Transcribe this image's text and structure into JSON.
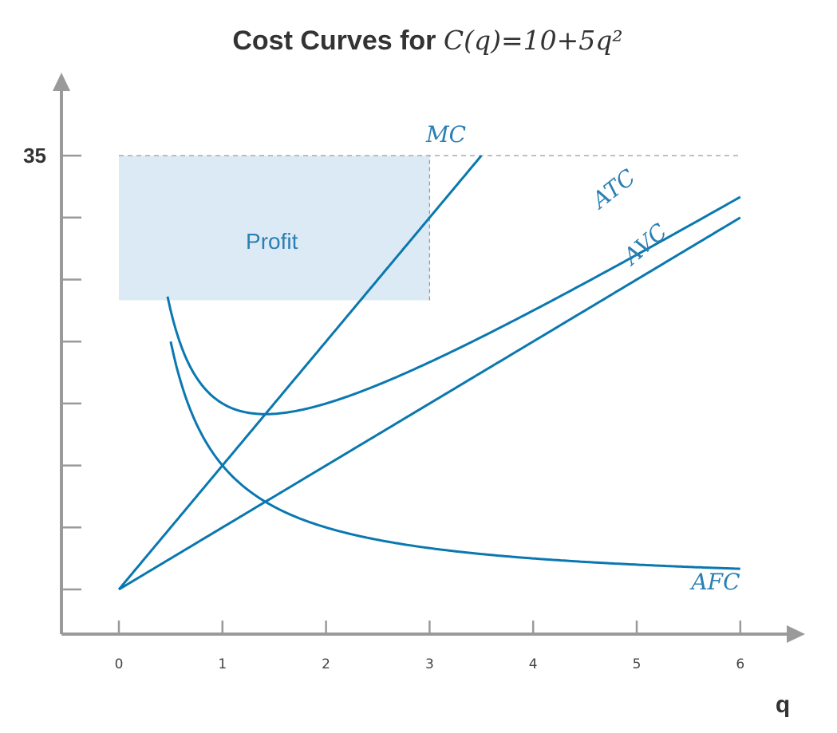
{
  "title_prefix": "Cost Curves for ",
  "title_formula": "C(q)=10+5q²",
  "chart_data": {
    "type": "line",
    "title": "Cost Curves for C(q)=10+5q²",
    "xlabel": "q",
    "ylabel": "",
    "x_ticks": [
      "0",
      "1",
      "2",
      "3",
      "4",
      "5",
      "6"
    ],
    "xlim": [
      0,
      6
    ],
    "ylim": [
      0,
      35
    ],
    "y_tick_labels": [
      {
        "value": 35,
        "label": "35"
      }
    ],
    "y_tick_values": [
      0,
      5,
      10,
      15,
      20,
      25,
      30,
      35
    ],
    "grid": false,
    "series": [
      {
        "name": "MC",
        "label": "MC",
        "formula": "10q",
        "x_range": [
          0,
          3.5
        ],
        "color": "#0a78b0"
      },
      {
        "name": "ATC",
        "label": "ATC",
        "formula": "10/q + 5q",
        "x_range": [
          0.47,
          6
        ],
        "color": "#0a78b0"
      },
      {
        "name": "AVC",
        "label": "AVC",
        "formula": "5q",
        "x_range": [
          0,
          6
        ],
        "color": "#0a78b0"
      },
      {
        "name": "AFC",
        "label": "AFC",
        "formula": "10/q",
        "x_range": [
          0.5,
          6
        ],
        "color": "#0a78b0"
      }
    ],
    "profit_region": {
      "label": "Profit",
      "x": [
        0,
        3
      ],
      "y": [
        23.33,
        35
      ],
      "color": "#dceaf5"
    },
    "guide_line": {
      "y": 35,
      "x": [
        0,
        6
      ]
    },
    "guide_vertical": {
      "x": 3,
      "y": [
        23.33,
        35
      ]
    }
  }
}
